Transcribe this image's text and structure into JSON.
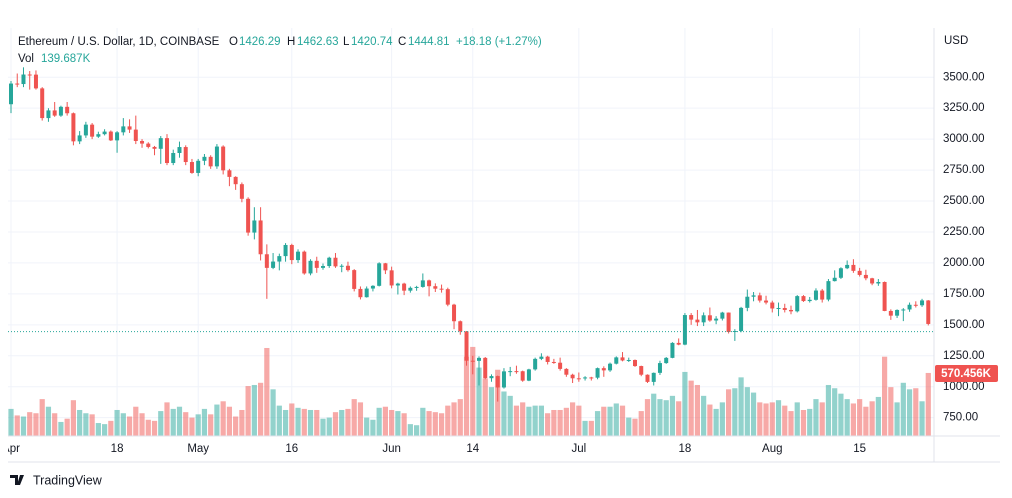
{
  "chart_data": {
    "type": "candlestick",
    "title": "Ethereum / U.S. Dollar, 1D, COINBASE",
    "legend": {
      "open_label": "O",
      "open": 1426.29,
      "high_label": "H",
      "high": 1462.63,
      "low_label": "L",
      "low": 1420.74,
      "close_label": "C",
      "close": 1444.81,
      "change_label": "+18.18 (+1.27%)"
    },
    "volume_legend": {
      "name": "Vol",
      "value": 139687,
      "label": "139.687K"
    },
    "currency": "USD",
    "brand": "TradingView",
    "up_color": "#26a69a",
    "down_color": "#ef5350",
    "grid": true,
    "ylim": [
      610,
      3720
    ],
    "yticks": [
      {
        "value": 750,
        "label": "750.00"
      },
      {
        "value": 1000,
        "label": "1000.00"
      },
      {
        "value": 1250,
        "label": "1250.00"
      },
      {
        "value": 1500,
        "label": "1500.00"
      },
      {
        "value": 1750,
        "label": "1750.00"
      },
      {
        "value": 2000,
        "label": "2000.00"
      },
      {
        "value": 2250,
        "label": "2250.00"
      },
      {
        "value": 2500,
        "label": "2500.00"
      },
      {
        "value": 2750,
        "label": "2750.00"
      },
      {
        "value": 3000,
        "label": "3000.00"
      },
      {
        "value": 3250,
        "label": "3250.00"
      },
      {
        "value": 3500,
        "label": "3500.00"
      }
    ],
    "categories": [
      "Apr",
      null,
      null,
      null,
      null,
      null,
      null,
      null,
      null,
      null,
      null,
      null,
      null,
      null,
      null,
      null,
      null,
      "18",
      null,
      null,
      null,
      null,
      null,
      null,
      null,
      null,
      null,
      null,
      null,
      null,
      "May",
      null,
      null,
      null,
      null,
      null,
      null,
      null,
      null,
      null,
      null,
      null,
      null,
      null,
      null,
      "16",
      null,
      null,
      null,
      null,
      null,
      null,
      null,
      null,
      null,
      null,
      null,
      null,
      null,
      null,
      null,
      "Jun",
      null,
      null,
      null,
      null,
      null,
      null,
      null,
      null,
      null,
      null,
      null,
      null,
      "14",
      null,
      null,
      null,
      null,
      null,
      null,
      null,
      null,
      null,
      null,
      null,
      null,
      null,
      null,
      null,
      null,
      "Jul",
      null,
      null,
      null,
      null,
      null,
      null,
      null,
      null,
      null,
      null,
      null,
      null,
      null,
      null,
      null,
      null,
      "18",
      null,
      null,
      null,
      null,
      null,
      null,
      null,
      null,
      null,
      null,
      null,
      null,
      null,
      "Aug",
      null,
      null,
      null,
      null,
      null,
      null,
      null,
      null,
      null,
      null,
      null,
      null,
      null,
      "15",
      null,
      null,
      null,
      null,
      null,
      null,
      null,
      null,
      null,
      null,
      null
    ],
    "open": [
      3282,
      3449,
      3445,
      3522,
      3521,
      3410,
      3170,
      3232,
      3190,
      3261,
      3209,
      2982,
      3030,
      3117,
      3020,
      3040,
      3061,
      2990,
      3055,
      3103,
      3077,
      2985,
      2964,
      2937,
      2922,
      3008,
      2807,
      2888,
      2936,
      2815,
      2727,
      2825,
      2857,
      2780,
      2940,
      2748,
      2695,
      2636,
      2518,
      2245,
      2343,
      2070,
      1960,
      2011,
      2055,
      2145,
      2023,
      2091,
      1915,
      2017,
      1960,
      1975,
      2042,
      1972,
      1977,
      1942,
      1790,
      1723,
      1793,
      1815,
      1997,
      1940,
      1818,
      1833,
      1776,
      1799,
      1806,
      1859,
      1812,
      1792,
      1788,
      1663,
      1529,
      1447,
      1210,
      1209,
      1233,
      1069,
      1086,
      994,
      1124,
      1126,
      1125,
      1049,
      1140,
      1225,
      1243,
      1200,
      1194,
      1144,
      1097,
      1068,
      1067,
      1075,
      1073,
      1150,
      1132,
      1186,
      1237,
      1212,
      1216,
      1167,
      1097,
      1039,
      1112,
      1191,
      1233,
      1354,
      1340,
      1579,
      1542,
      1520,
      1577,
      1535,
      1550,
      1599,
      1442,
      1450,
      1637,
      1727,
      1738,
      1696,
      1680,
      1632,
      1636,
      1620,
      1609,
      1732,
      1692,
      1702,
      1777,
      1704,
      1853,
      1880,
      1957,
      1984,
      1936,
      1903,
      1876,
      1834,
      1846,
      1612,
      1574,
      1620,
      1624,
      1662,
      1658,
      1697
    ],
    "high": [
      3470,
      3530,
      3580,
      3550,
      3555,
      3420,
      3250,
      3300,
      3270,
      3300,
      3215,
      3065,
      3140,
      3130,
      3060,
      3080,
      3070,
      3065,
      3170,
      3160,
      3190,
      3000,
      2975,
      2945,
      3025,
      3040,
      2915,
      2980,
      2950,
      2840,
      2840,
      2880,
      2870,
      2960,
      2950,
      2760,
      2700,
      2650,
      2530,
      2450,
      2450,
      2150,
      2080,
      2075,
      2160,
      2155,
      2110,
      2100,
      2030,
      2050,
      1995,
      2050,
      2080,
      1990,
      2010,
      1950,
      1810,
      1810,
      1820,
      2005,
      2000,
      1970,
      1840,
      1840,
      1810,
      1815,
      1915,
      1865,
      1835,
      1825,
      1800,
      1670,
      1535,
      1450,
      1250,
      1245,
      1240,
      1100,
      1090,
      1150,
      1160,
      1170,
      1130,
      1145,
      1235,
      1270,
      1250,
      1225,
      1235,
      1150,
      1105,
      1115,
      1085,
      1080,
      1155,
      1165,
      1195,
      1245,
      1280,
      1235,
      1220,
      1170,
      1100,
      1115,
      1210,
      1240,
      1360,
      1390,
      1595,
      1595,
      1620,
      1600,
      1640,
      1570,
      1605,
      1600,
      1465,
      1645,
      1785,
      1765,
      1760,
      1735,
      1695,
      1680,
      1670,
      1655,
      1740,
      1740,
      1725,
      1795,
      1790,
      1870,
      1940,
      1965,
      2020,
      2030,
      1960,
      1945,
      1880,
      1870,
      1850,
      1625,
      1625,
      1635,
      1680,
      1690,
      1710,
      1700
    ],
    "low": [
      3210,
      3420,
      3420,
      3400,
      3400,
      3150,
      3140,
      3180,
      3180,
      3190,
      2950,
      2960,
      3010,
      3000,
      3010,
      3030,
      2985,
      2890,
      3030,
      3050,
      2960,
      2930,
      2925,
      2870,
      2800,
      2790,
      2790,
      2850,
      2790,
      2720,
      2700,
      2790,
      2760,
      2760,
      2715,
      2620,
      2590,
      2490,
      2220,
      2190,
      2020,
      1710,
      1950,
      1940,
      2010,
      1990,
      2000,
      1905,
      1900,
      1920,
      1945,
      1960,
      1960,
      1925,
      1930,
      1770,
      1705,
      1720,
      1770,
      1810,
      1910,
      1795,
      1745,
      1740,
      1760,
      1775,
      1800,
      1730,
      1765,
      1760,
      1650,
      1465,
      1420,
      1170,
      1100,
      1010,
      1060,
      1040,
      880,
      985,
      1085,
      1105,
      1040,
      1045,
      1130,
      1215,
      1180,
      1185,
      1130,
      1080,
      1030,
      1040,
      1050,
      1050,
      1060,
      1080,
      1120,
      1180,
      1205,
      1200,
      1160,
      1085,
      1030,
      1010,
      1095,
      1185,
      1230,
      1335,
      1335,
      1500,
      1490,
      1490,
      1525,
      1505,
      1535,
      1430,
      1370,
      1440,
      1610,
      1690,
      1680,
      1665,
      1600,
      1570,
      1600,
      1585,
      1600,
      1685,
      1680,
      1695,
      1680,
      1690,
      1850,
      1870,
      1950,
      1920,
      1890,
      1860,
      1820,
      1815,
      1610,
      1540,
      1555,
      1530,
      1605,
      1640,
      1645,
      1495
    ],
    "close": [
      3449,
      3445,
      3522,
      3521,
      3410,
      3170,
      3232,
      3190,
      3261,
      3209,
      2982,
      3030,
      3117,
      3020,
      3040,
      3061,
      2990,
      3055,
      3103,
      3077,
      2985,
      2964,
      2937,
      2922,
      3008,
      2807,
      2888,
      2936,
      2815,
      2727,
      2825,
      2857,
      2780,
      2940,
      2748,
      2695,
      2636,
      2518,
      2245,
      2343,
      2070,
      1960,
      2011,
      2055,
      2145,
      2023,
      2091,
      1915,
      2017,
      1960,
      1975,
      2042,
      1972,
      1977,
      1942,
      1790,
      1723,
      1793,
      1815,
      1997,
      1940,
      1818,
      1833,
      1776,
      1799,
      1806,
      1859,
      1812,
      1792,
      1788,
      1663,
      1529,
      1447,
      1210,
      1209,
      1233,
      1069,
      1086,
      994,
      1124,
      1126,
      1125,
      1049,
      1140,
      1225,
      1243,
      1200,
      1194,
      1144,
      1097,
      1068,
      1067,
      1075,
      1073,
      1150,
      1132,
      1186,
      1237,
      1212,
      1216,
      1167,
      1097,
      1039,
      1112,
      1191,
      1233,
      1354,
      1340,
      1579,
      1542,
      1520,
      1577,
      1535,
      1550,
      1599,
      1442,
      1450,
      1637,
      1727,
      1738,
      1696,
      1680,
      1632,
      1636,
      1620,
      1609,
      1732,
      1692,
      1702,
      1777,
      1704,
      1853,
      1880,
      1957,
      1984,
      1936,
      1903,
      1876,
      1834,
      1846,
      1612,
      1574,
      1620,
      1624,
      1662,
      1658,
      1697,
      1507
    ],
    "volume": {
      "name": "Vol",
      "last_value_label": "570.456K",
      "ylim": [
        0,
        3540000
      ],
      "values": [
        240000,
        180000,
        170000,
        210000,
        200000,
        330000,
        260000,
        200000,
        120000,
        150000,
        320000,
        230000,
        200000,
        190000,
        110000,
        100000,
        130000,
        230000,
        200000,
        170000,
        260000,
        200000,
        140000,
        130000,
        220000,
        300000,
        240000,
        260000,
        210000,
        160000,
        190000,
        240000,
        190000,
        280000,
        310000,
        260000,
        170000,
        230000,
        450000,
        460000,
        480000,
        800000,
        420000,
        270000,
        230000,
        290000,
        250000,
        240000,
        230000,
        230000,
        150000,
        160000,
        210000,
        230000,
        240000,
        330000,
        300000,
        160000,
        140000,
        250000,
        260000,
        230000,
        220000,
        200000,
        100000,
        90000,
        250000,
        220000,
        210000,
        200000,
        270000,
        300000,
        330000,
        720000,
        810000,
        620000,
        520000,
        440000,
        600000,
        400000,
        360000,
        270000,
        300000,
        260000,
        270000,
        270000,
        200000,
        230000,
        230000,
        250000,
        300000,
        270000,
        130000,
        130000,
        220000,
        260000,
        260000,
        290000,
        270000,
        160000,
        150000,
        220000,
        330000,
        380000,
        330000,
        320000,
        360000,
        310000,
        580000,
        500000,
        460000,
        360000,
        280000,
        240000,
        300000,
        420000,
        430000,
        530000,
        440000,
        390000,
        300000,
        290000,
        300000,
        320000,
        270000,
        220000,
        300000,
        230000,
        240000,
        330000,
        300000,
        460000,
        430000,
        380000,
        330000,
        290000,
        330000,
        260000,
        310000,
        350000,
        720000,
        440000,
        300000,
        480000,
        420000,
        430000,
        310000,
        570456
      ]
    }
  }
}
